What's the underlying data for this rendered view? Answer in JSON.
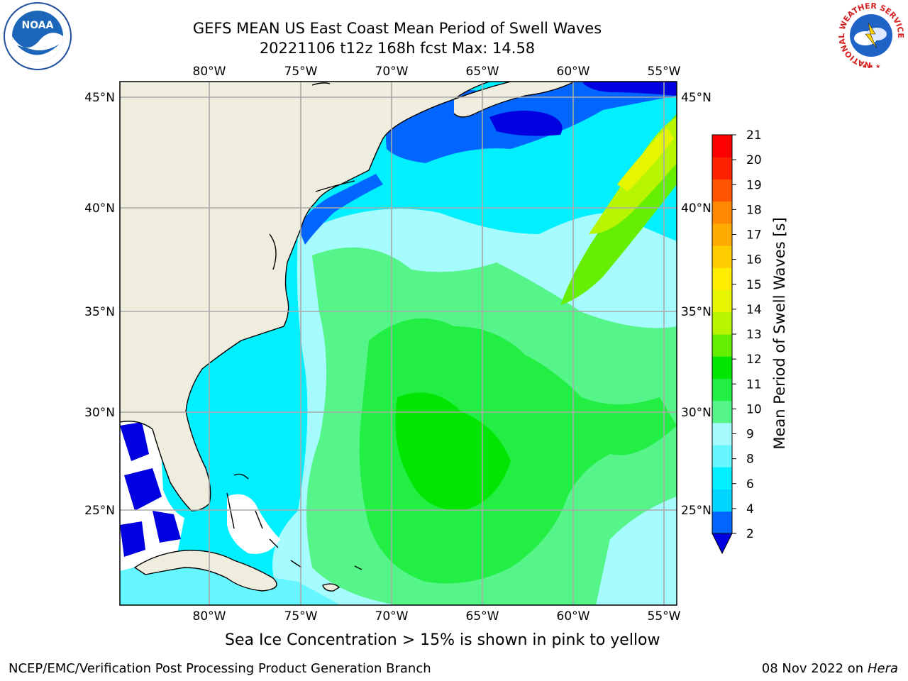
{
  "title": {
    "line1": "GEFS MEAN US East Coast Mean Period of Swell Waves",
    "line2": "20221106 t12z 168h fcst   Max: 14.58"
  },
  "map": {
    "lon_ticks": [
      "80°W",
      "75°W",
      "70°W",
      "65°W",
      "60°W",
      "55°W"
    ],
    "lat_ticks": [
      "45°N",
      "40°N",
      "35°N",
      "30°N",
      "25°N"
    ],
    "colors": {
      "land": "#efedde",
      "grid": "#a9a9a9",
      "coast": "#000000",
      "ice_missing": "#ffffff"
    }
  },
  "colorbar": {
    "label": "Mean Period of Swell Waves [s]",
    "ticks": [
      "21",
      "20",
      "19",
      "18",
      "17",
      "16",
      "15",
      "14",
      "13",
      "12",
      "11",
      "10",
      "9",
      "8",
      "6",
      "4",
      "2"
    ],
    "colors": [
      "#0000e0",
      "#0066ff",
      "#00d4ff",
      "#00f0ff",
      "#66f6ff",
      "#a6fbff",
      "#55f58a",
      "#22ee44",
      "#00e600",
      "#66ee00",
      "#b8f500",
      "#e6f500",
      "#ffee00",
      "#ffcc00",
      "#ffaa00",
      "#ff8800",
      "#ff5500",
      "#ff2200",
      "#ff0000"
    ]
  },
  "caption": "Sea Ice Concentration > 15% is shown in pink to yellow",
  "footer": {
    "credit": "NCEP/EMC/Verification Post Processing Product Generation Branch",
    "date": "08 Nov 2022 on",
    "host": "Hera"
  },
  "logos": {
    "noaa": "NOAA",
    "nws_ring": "NATIONAL WEATHER SERVICE"
  }
}
